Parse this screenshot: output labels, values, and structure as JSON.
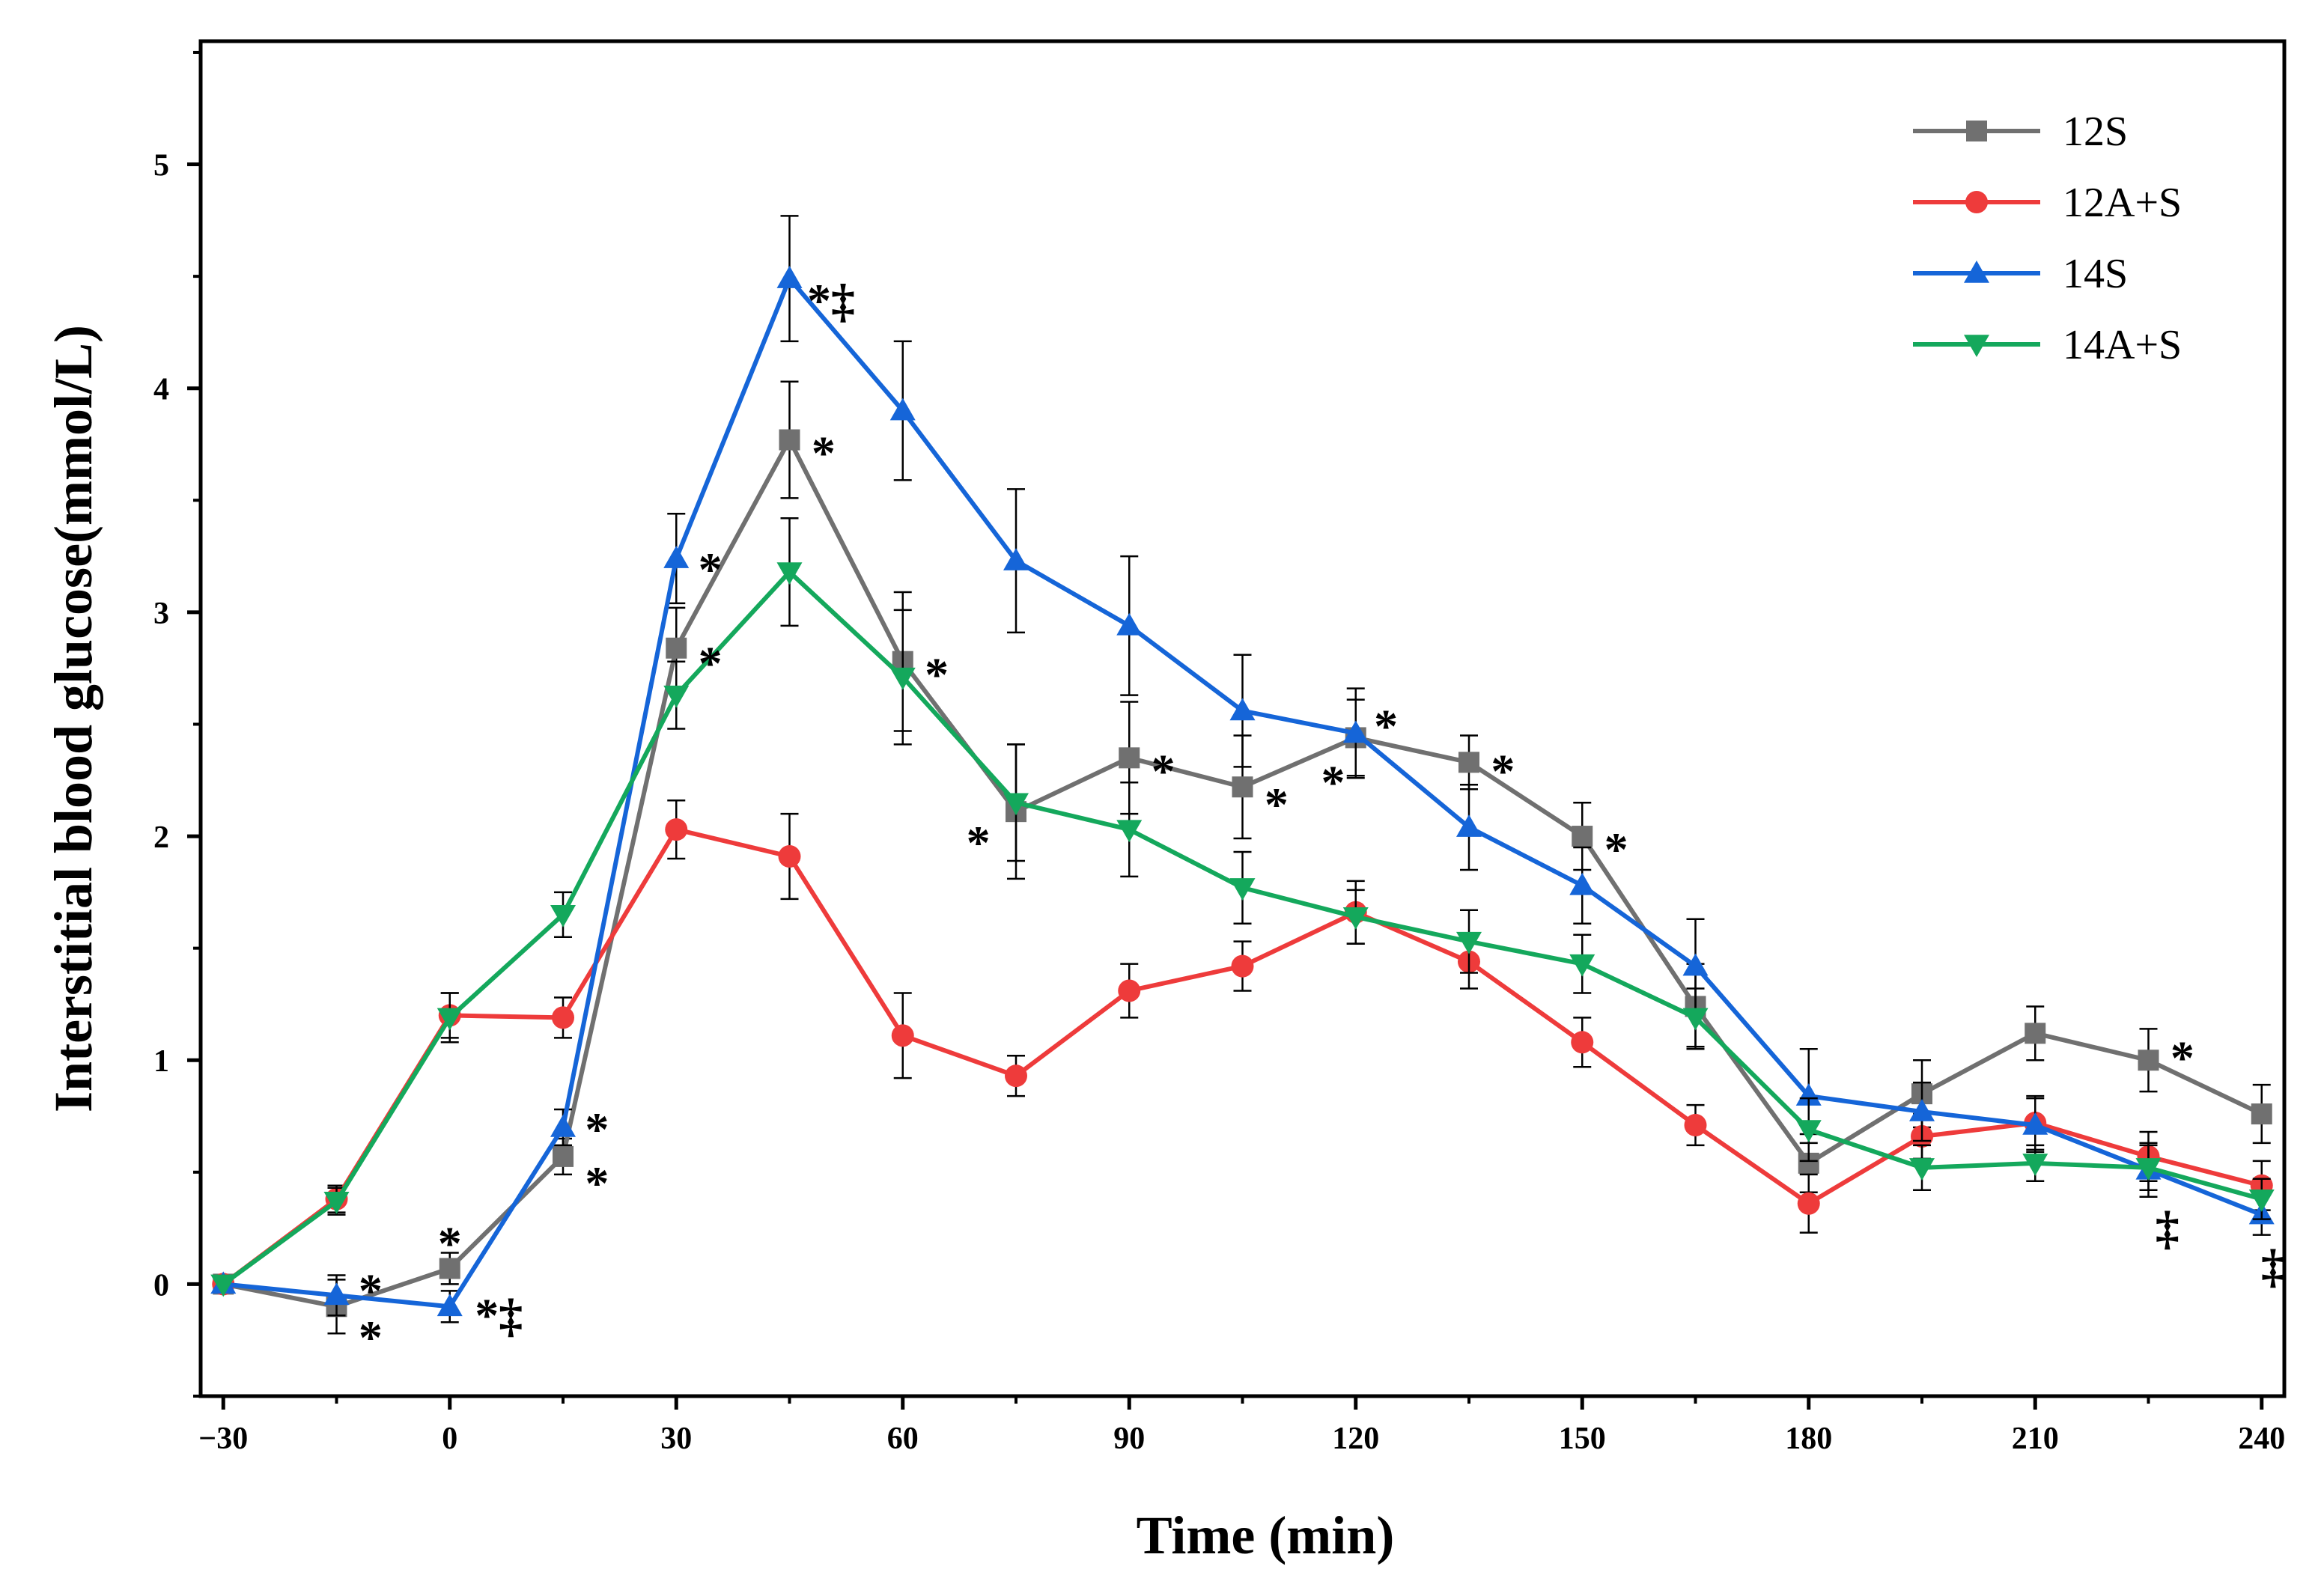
{
  "chart_data": {
    "type": "line",
    "title": "",
    "xlabel": "Time (min)",
    "ylabel": "Interstitial blood glucose(mmol/L)",
    "xlim": [
      -33,
      243
    ],
    "ylim": [
      -0.5,
      5.55
    ],
    "xticks": [
      -30,
      0,
      30,
      60,
      90,
      120,
      150,
      180,
      210,
      240
    ],
    "xtick_labels": [
      "−30",
      "0",
      "30",
      "60",
      "90",
      "120",
      "150",
      "180",
      "210",
      "240"
    ],
    "yticks": [
      0,
      1,
      2,
      3,
      4,
      5
    ],
    "ytick_labels": [
      "0",
      "1",
      "2",
      "3",
      "4",
      "5"
    ],
    "grid": false,
    "legend_position": "top-right",
    "x": [
      -30,
      -15,
      0,
      15,
      30,
      45,
      60,
      75,
      90,
      105,
      120,
      135,
      150,
      165,
      180,
      195,
      210,
      225,
      240
    ],
    "series": [
      {
        "name": "12S",
        "color": "#707070",
        "marker": "square",
        "values": [
          0,
          -0.1,
          0.07,
          0.57,
          2.84,
          3.77,
          2.78,
          2.11,
          2.35,
          2.22,
          2.44,
          2.33,
          2.0,
          1.24,
          0.54,
          0.85,
          1.12,
          1.0,
          0.76
        ],
        "errors": [
          0,
          0.12,
          0.07,
          0.08,
          0.18,
          0.26,
          0.31,
          0.3,
          0.25,
          0.23,
          0.17,
          0.12,
          0.15,
          0.19,
          0.13,
          0.15,
          0.12,
          0.14,
          0.13
        ]
      },
      {
        "name": "12A+S",
        "color": "#EE3B3B",
        "marker": "circle",
        "values": [
          0,
          0.38,
          1.2,
          1.19,
          2.03,
          1.91,
          1.11,
          0.93,
          1.31,
          1.42,
          1.66,
          1.44,
          1.08,
          0.71,
          0.36,
          0.66,
          0.72,
          0.57,
          0.44
        ],
        "errors": [
          0,
          0.06,
          0.1,
          0.09,
          0.13,
          0.19,
          0.19,
          0.09,
          0.12,
          0.11,
          0.14,
          0.12,
          0.11,
          0.09,
          0.13,
          0.1,
          0.12,
          0.11,
          0.11
        ]
      },
      {
        "name": "14S",
        "color": "#1565D8",
        "marker": "triangle-up",
        "values": [
          0,
          -0.05,
          -0.1,
          0.7,
          3.24,
          4.49,
          3.9,
          3.23,
          2.94,
          2.56,
          2.46,
          2.04,
          1.78,
          1.42,
          0.84,
          0.77,
          0.71,
          0.51,
          0.31
        ],
        "errors": [
          0,
          0.09,
          0.07,
          0.08,
          0.2,
          0.28,
          0.31,
          0.32,
          0.31,
          0.25,
          0.2,
          0.19,
          0.17,
          0.21,
          0.21,
          0.13,
          0.12,
          0.12,
          0.09
        ]
      },
      {
        "name": "14A+S",
        "color": "#14A85C",
        "marker": "triangle-down",
        "values": [
          0,
          0.37,
          1.19,
          1.65,
          2.63,
          3.18,
          2.71,
          2.15,
          2.03,
          1.77,
          1.64,
          1.53,
          1.43,
          1.19,
          0.69,
          0.52,
          0.54,
          0.52,
          0.38
        ],
        "errors": [
          0,
          0.06,
          0.11,
          0.1,
          0.15,
          0.24,
          0.3,
          0.26,
          0.21,
          0.16,
          0.12,
          0.14,
          0.13,
          0.13,
          0.14,
          0.1,
          0.08,
          0.1,
          0.09
        ]
      }
    ],
    "annotations": [
      {
        "text": "*",
        "x": -10.5,
        "y": -0.02
      },
      {
        "text": "*",
        "x": -10.5,
        "y": -0.23
      },
      {
        "text": "*",
        "x": 0,
        "y": 0.19
      },
      {
        "text": "*‡",
        "x": 6.5,
        "y": -0.13
      },
      {
        "text": "*",
        "x": 19.5,
        "y": 0.7
      },
      {
        "text": "*",
        "x": 19.5,
        "y": 0.46
      },
      {
        "text": "*",
        "x": 34.5,
        "y": 3.2
      },
      {
        "text": "*",
        "x": 34.5,
        "y": 2.78
      },
      {
        "text": "*‡",
        "x": 50.5,
        "y": 4.4
      },
      {
        "text": "*",
        "x": 49.5,
        "y": 3.72
      },
      {
        "text": "*",
        "x": 64.5,
        "y": 2.73
      },
      {
        "text": "*",
        "x": 70.0,
        "y": 1.98
      },
      {
        "text": "*",
        "x": 94.5,
        "y": 2.3
      },
      {
        "text": "*",
        "x": 109.5,
        "y": 2.15
      },
      {
        "text": "*",
        "x": 117.0,
        "y": 2.25
      },
      {
        "text": "*",
        "x": 124.0,
        "y": 2.5
      },
      {
        "text": "*",
        "x": 139.5,
        "y": 2.3
      },
      {
        "text": "*",
        "x": 154.5,
        "y": 1.95
      },
      {
        "text": "*",
        "x": 229.5,
        "y": 1.02
      },
      {
        "text": "‡",
        "x": 227.5,
        "y": 0.26
      },
      {
        "text": "‡",
        "x": 241.5,
        "y": 0.09
      }
    ]
  }
}
